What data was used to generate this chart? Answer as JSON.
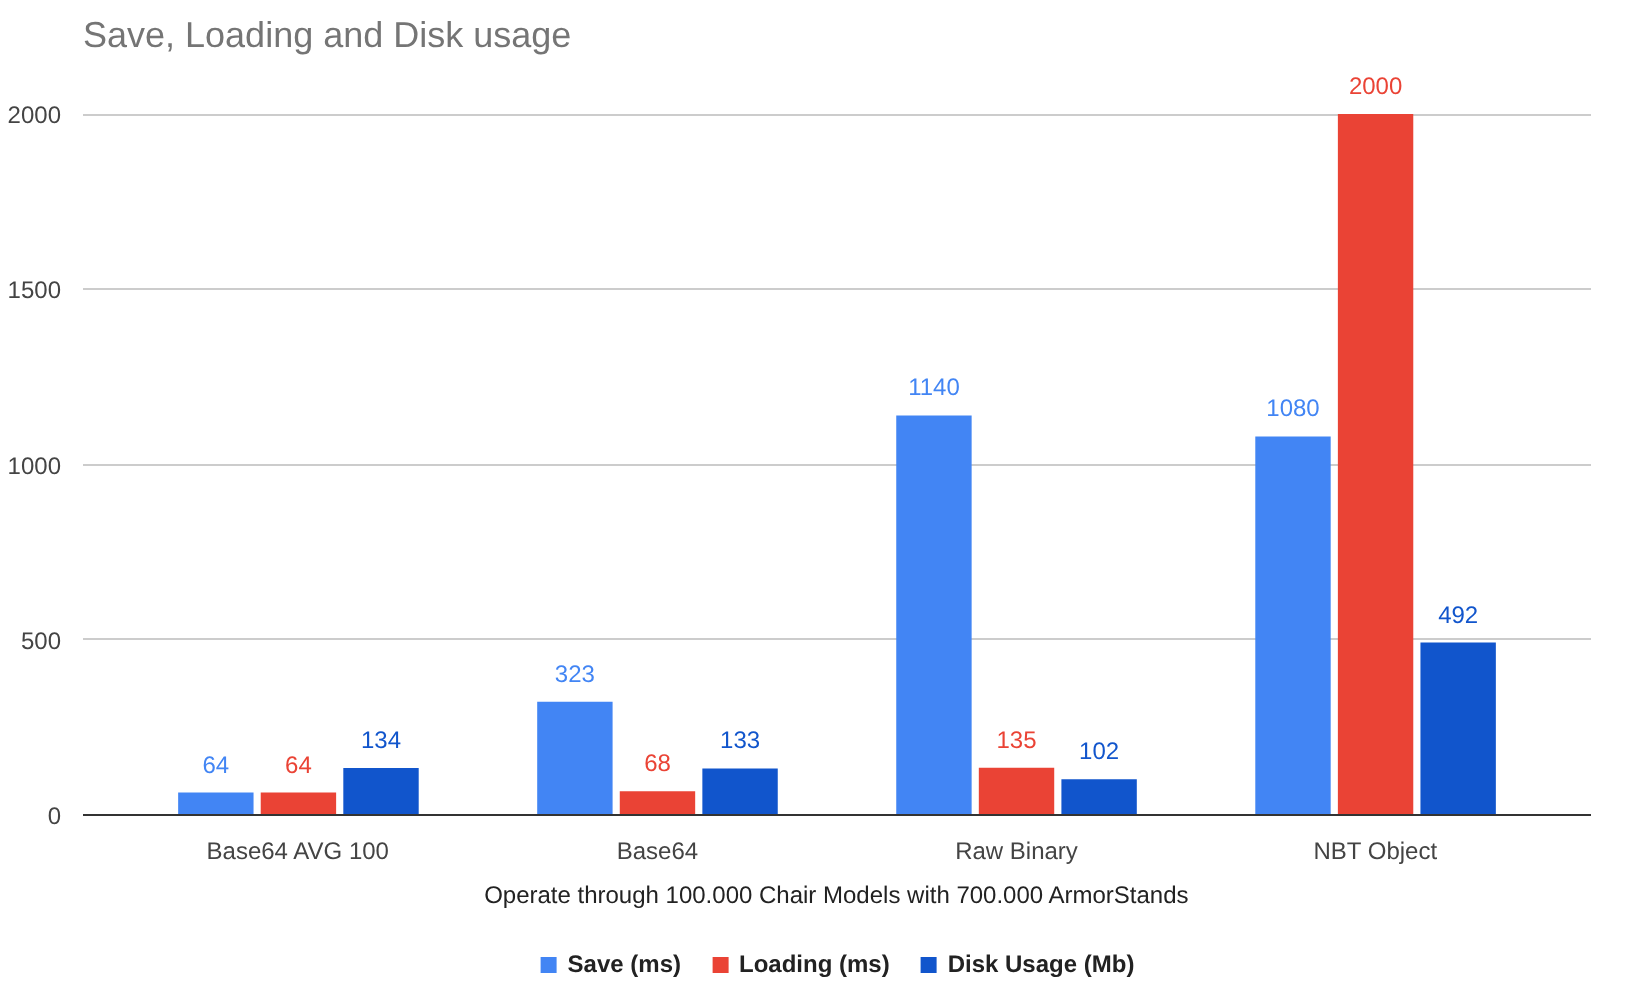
{
  "chart_data": {
    "type": "bar",
    "title": "Save, Loading and Disk usage",
    "xlabel": "Operate through 100.000 Chair Models with 700.000 ArmorStands",
    "categories": [
      "Base64 AVG 100",
      "Base64",
      "Raw Binary",
      "NBT Object"
    ],
    "series": [
      {
        "name": "Save (ms)",
        "color": "#4285f4",
        "values": [
          64,
          323,
          1140,
          1080
        ]
      },
      {
        "name": "Loading (ms)",
        "color": "#ea4335",
        "values": [
          64,
          68,
          135,
          2000
        ]
      },
      {
        "name": "Disk Usage (Mb)",
        "color": "#1155cc",
        "values": [
          134,
          133,
          102,
          492
        ]
      }
    ],
    "ylim": [
      0,
      2000
    ],
    "yticks": [
      0,
      500,
      1000,
      1500,
      2000
    ],
    "grid": "y",
    "legend": "bottom",
    "data_labels": true
  }
}
